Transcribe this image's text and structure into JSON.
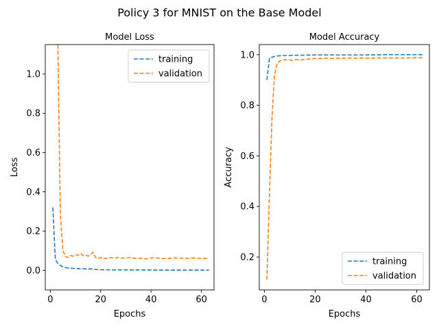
{
  "figure": {
    "suptitle": "Policy 3 for MNIST on the Base Model"
  },
  "chart_data": [
    {
      "type": "line",
      "title": "Model Loss",
      "xlabel": "Epochs",
      "ylabel": "Loss",
      "xlim": [
        -2,
        65
      ],
      "ylim": [
        -0.1,
        1.15
      ],
      "xticks": [
        0,
        20,
        40,
        60
      ],
      "yticks": [
        0.0,
        0.2,
        0.4,
        0.6,
        0.8,
        1.0
      ],
      "ytick_labels": [
        "0.0",
        "0.2",
        "0.4",
        "0.6",
        "0.8",
        "1.0"
      ],
      "legend": "top-right",
      "grid": false,
      "series": [
        {
          "name": "training",
          "color": "#1f77b4",
          "x": [
            1,
            2,
            3,
            4,
            5,
            6,
            7,
            8,
            9,
            10,
            12,
            14,
            16,
            18,
            20,
            25,
            30,
            35,
            40,
            45,
            50,
            55,
            60,
            63
          ],
          "y": [
            0.32,
            0.055,
            0.035,
            0.025,
            0.018,
            0.014,
            0.012,
            0.011,
            0.01,
            0.009,
            0.008,
            0.007,
            0.007,
            0.004,
            0.003,
            0.002,
            0.002,
            0.002,
            0.001,
            0.001,
            0.001,
            0.001,
            0.001,
            0.001
          ]
        },
        {
          "name": "validation",
          "color": "#ff7f0e",
          "x": [
            3,
            4,
            5,
            6,
            7,
            8,
            9,
            10,
            11,
            12,
            13,
            14,
            15,
            16,
            17,
            18,
            19,
            20,
            21,
            22,
            23,
            24,
            25,
            26,
            27,
            28,
            30,
            32,
            34,
            36,
            38,
            40,
            42,
            44,
            46,
            48,
            50,
            52,
            54,
            56,
            58,
            60,
            62,
            63
          ],
          "y": [
            1.15,
            0.28,
            0.1,
            0.07,
            0.065,
            0.075,
            0.072,
            0.08,
            0.076,
            0.085,
            0.075,
            0.078,
            0.072,
            0.08,
            0.092,
            0.065,
            0.06,
            0.065,
            0.058,
            0.062,
            0.06,
            0.065,
            0.062,
            0.062,
            0.066,
            0.062,
            0.063,
            0.065,
            0.06,
            0.062,
            0.058,
            0.063,
            0.064,
            0.06,
            0.06,
            0.062,
            0.063,
            0.062,
            0.061,
            0.063,
            0.062,
            0.061,
            0.06,
            0.06
          ]
        }
      ]
    },
    {
      "type": "line",
      "title": "Model Accuracy",
      "xlabel": "Epochs",
      "ylabel": "Accuracy",
      "xlim": [
        -2,
        65
      ],
      "ylim": [
        0.07,
        1.04
      ],
      "xticks": [
        0,
        20,
        40,
        60
      ],
      "yticks": [
        0.2,
        0.4,
        0.6,
        0.8,
        1.0
      ],
      "ytick_labels": [
        "0.2",
        "0.4",
        "0.6",
        "0.8",
        "1.0"
      ],
      "legend": "bottom-right",
      "grid": false,
      "series": [
        {
          "name": "training",
          "color": "#1f77b4",
          "x": [
            1,
            2,
            3,
            4,
            5,
            7,
            10,
            15,
            20,
            25,
            30,
            40,
            50,
            60,
            63
          ],
          "y": [
            0.9,
            0.985,
            0.99,
            0.993,
            0.995,
            0.996,
            0.997,
            0.998,
            0.999,
            0.999,
            0.999,
            0.999,
            1.0,
            1.0,
            1.0
          ],
          "note_unused": ""
        },
        {
          "name": "validation",
          "color": "#ff7f0e",
          "x": [
            1,
            2,
            3,
            4,
            5,
            6,
            7,
            8,
            9,
            10,
            11,
            12,
            13,
            14,
            15,
            16,
            17,
            18,
            19,
            20,
            22,
            24,
            26,
            28,
            30,
            32,
            34,
            36,
            38,
            40,
            45,
            50,
            55,
            60,
            63
          ],
          "y": [
            0.11,
            0.45,
            0.75,
            0.92,
            0.965,
            0.975,
            0.978,
            0.98,
            0.979,
            0.98,
            0.977,
            0.98,
            0.981,
            0.979,
            0.98,
            0.981,
            0.982,
            0.983,
            0.984,
            0.985,
            0.985,
            0.986,
            0.985,
            0.985,
            0.986,
            0.986,
            0.987,
            0.986,
            0.987,
            0.986,
            0.987,
            0.987,
            0.987,
            0.988,
            0.988
          ]
        }
      ]
    }
  ]
}
